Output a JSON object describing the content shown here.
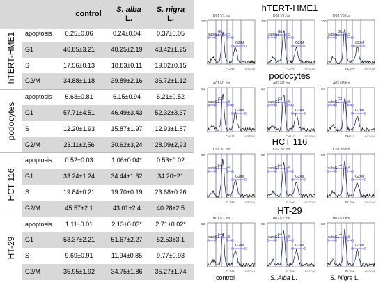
{
  "table": {
    "headers": {
      "control": "control",
      "alba_species": "S. alba",
      "alba_suffix": "L.",
      "nigra_species": "S. nigra",
      "nigra_suffix": "L."
    },
    "groups": [
      {
        "name": "hTERT-HME1",
        "rows": [
          {
            "label": "apoptosis",
            "control": "0.25±0.06",
            "alba": "0.24±0.04",
            "nigra": "0.37±0.05"
          },
          {
            "label": "G1",
            "control": "46.85±3.21",
            "alba": "40.25±2.19",
            "nigra": "43.42±1.25"
          },
          {
            "label": "S",
            "control": "17.56±0.13",
            "alba": "18.83±0.11",
            "nigra": "19.02±0.15"
          },
          {
            "label": "G2/M",
            "control": "34.88±1.18",
            "alba": "39.89±2.16",
            "nigra": "36.72±1.12"
          }
        ]
      },
      {
        "name": "podocytes",
        "rows": [
          {
            "label": "apoptosis",
            "control": "6.63±0.81",
            "alba": "6.15±0.94",
            "nigra": "6.21±0.52"
          },
          {
            "label": "G1",
            "control": "57.71±4.51",
            "alba": "46.49±3.43",
            "nigra": "52.32±3.37"
          },
          {
            "label": "S",
            "control": "12.20±1.93",
            "alba": "15.87±1.97",
            "nigra": "12.93±1.87"
          },
          {
            "label": "G2/M",
            "control": "23.11±2,56",
            "alba": "30.62±3,24",
            "nigra": "28.09±2,93"
          }
        ]
      },
      {
        "name": "HCT 116",
        "rows": [
          {
            "label": "apoptosis",
            "control": "0.52±0.03",
            "alba": "1.06±0.04*",
            "nigra": "0.53±0.02"
          },
          {
            "label": "G1",
            "control": "33.24±1.24",
            "alba": "34.44±1.32",
            "nigra": "34.20±21"
          },
          {
            "label": "S",
            "control": "19.84±0.21",
            "alba": "19.70±0.19",
            "nigra": "23.68±0.26"
          },
          {
            "label": "G2/M",
            "control": "45.57±2.1",
            "alba": "43.01±2.4",
            "nigra": "40.28±2.5"
          }
        ]
      },
      {
        "name": "HT-29",
        "rows": [
          {
            "label": "apoptosis",
            "control": "1.11±0.01",
            "alba": "2.13±0.03*",
            "nigra": "2.71±0.02*"
          },
          {
            "label": "G1",
            "control": "53.37±2.21",
            "alba": "51.67±2.27",
            "nigra": "52.53±3.1"
          },
          {
            "label": "S",
            "control": "9.69±0.91",
            "alba": "11.94±0.85",
            "nigra": "9.77±0.93"
          },
          {
            "label": "G2/M",
            "control": "35.95±1.92",
            "alba": "34.75±1.86",
            "nigra": "35.27±1.74"
          }
        ]
      }
    ]
  },
  "figure": {
    "sections": [
      {
        "title": "hTERT-HME1",
        "ymax": "100",
        "panels": [
          {
            "file": "D01 V1.fcs"
          },
          {
            "file": "D02 V2.fcs"
          },
          {
            "file": "D03 V3.fcs"
          }
        ]
      },
      {
        "title": "podocytes",
        "ymax": "40",
        "panels": [
          {
            "file": "A01 N1.fcs"
          },
          {
            "file": "A02 N2.fcs"
          },
          {
            "file": "A03 N3.fcs"
          }
        ]
      },
      {
        "title": "HCT 116",
        "ymax": "50",
        "panels": [
          {
            "file": "C01 B1.fcs"
          },
          {
            "file": "C02 B2.fcs"
          },
          {
            "file": "C03 B3.fcs"
          }
        ]
      },
      {
        "title": "HT-29",
        "ymax": "50",
        "panels": [
          {
            "file": "B01 K1.fcs"
          },
          {
            "file": "B02 K2.fcs"
          },
          {
            "file": "B03 K3.fcs"
          }
        ]
      }
    ],
    "gate_labels": {
      "subg1": "sub G1",
      "g1": "G1",
      "s": "S",
      "g2m": "G2/M"
    },
    "axis_x": "FL3-H",
    "axis_x2": "MITOOM",
    "footer": {
      "control": "control",
      "alba_species": "S. Alba",
      "alba_suffix": " L.",
      "nigra_species": "S. Nigra",
      "nigra_suffix": " L."
    },
    "colors": {
      "gate": "#5555dd",
      "histogram": "#111111",
      "axis": "#555555"
    }
  }
}
